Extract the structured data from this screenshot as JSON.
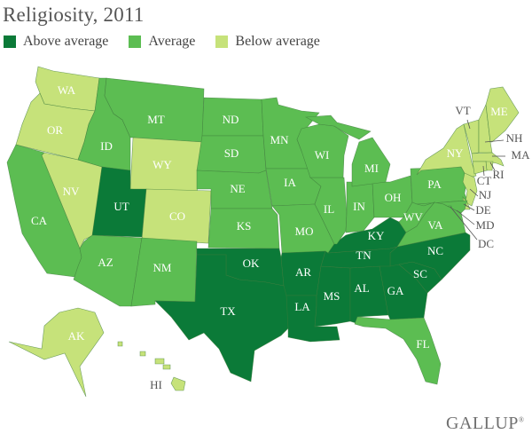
{
  "title": "Religiosity, 2011",
  "legend": [
    {
      "label": "Above average",
      "category": "above",
      "color": "#0b7a38"
    },
    {
      "label": "Average",
      "category": "average",
      "color": "#5cbd52"
    },
    {
      "label": "Below average",
      "category": "below",
      "color": "#c6e27a"
    }
  ],
  "states": [
    {
      "code": "WA",
      "category": "below"
    },
    {
      "code": "OR",
      "category": "below"
    },
    {
      "code": "CA",
      "category": "average"
    },
    {
      "code": "NV",
      "category": "below"
    },
    {
      "code": "ID",
      "category": "average"
    },
    {
      "code": "MT",
      "category": "average"
    },
    {
      "code": "WY",
      "category": "below"
    },
    {
      "code": "UT",
      "category": "above"
    },
    {
      "code": "CO",
      "category": "below"
    },
    {
      "code": "AZ",
      "category": "average"
    },
    {
      "code": "NM",
      "category": "average"
    },
    {
      "code": "ND",
      "category": "average"
    },
    {
      "code": "SD",
      "category": "average"
    },
    {
      "code": "NE",
      "category": "average"
    },
    {
      "code": "KS",
      "category": "average"
    },
    {
      "code": "OK",
      "category": "above"
    },
    {
      "code": "TX",
      "category": "above"
    },
    {
      "code": "MN",
      "category": "average"
    },
    {
      "code": "IA",
      "category": "average"
    },
    {
      "code": "MO",
      "category": "average"
    },
    {
      "code": "AR",
      "category": "above"
    },
    {
      "code": "LA",
      "category": "above"
    },
    {
      "code": "MS",
      "category": "above"
    },
    {
      "code": "AL",
      "category": "above"
    },
    {
      "code": "GA",
      "category": "above"
    },
    {
      "code": "FL",
      "category": "average"
    },
    {
      "code": "SC",
      "category": "above"
    },
    {
      "code": "NC",
      "category": "above"
    },
    {
      "code": "TN",
      "category": "above"
    },
    {
      "code": "KY",
      "category": "above"
    },
    {
      "code": "IL",
      "category": "average"
    },
    {
      "code": "IN",
      "category": "average"
    },
    {
      "code": "OH",
      "category": "average"
    },
    {
      "code": "WI",
      "category": "average"
    },
    {
      "code": "MI",
      "category": "average"
    },
    {
      "code": "PA",
      "category": "average"
    },
    {
      "code": "NY",
      "category": "below"
    },
    {
      "code": "VT",
      "category": "below"
    },
    {
      "code": "NH",
      "category": "below"
    },
    {
      "code": "ME",
      "category": "below"
    },
    {
      "code": "MA",
      "category": "below"
    },
    {
      "code": "RI",
      "category": "below"
    },
    {
      "code": "CT",
      "category": "below"
    },
    {
      "code": "NJ",
      "category": "below"
    },
    {
      "code": "DE",
      "category": "below"
    },
    {
      "code": "MD",
      "category": "average"
    },
    {
      "code": "DC",
      "category": "average"
    },
    {
      "code": "WV",
      "category": "average"
    },
    {
      "code": "VA",
      "category": "average"
    },
    {
      "code": "AK",
      "category": "below"
    },
    {
      "code": "HI",
      "category": "below"
    }
  ],
  "logo": "GALLUP"
}
